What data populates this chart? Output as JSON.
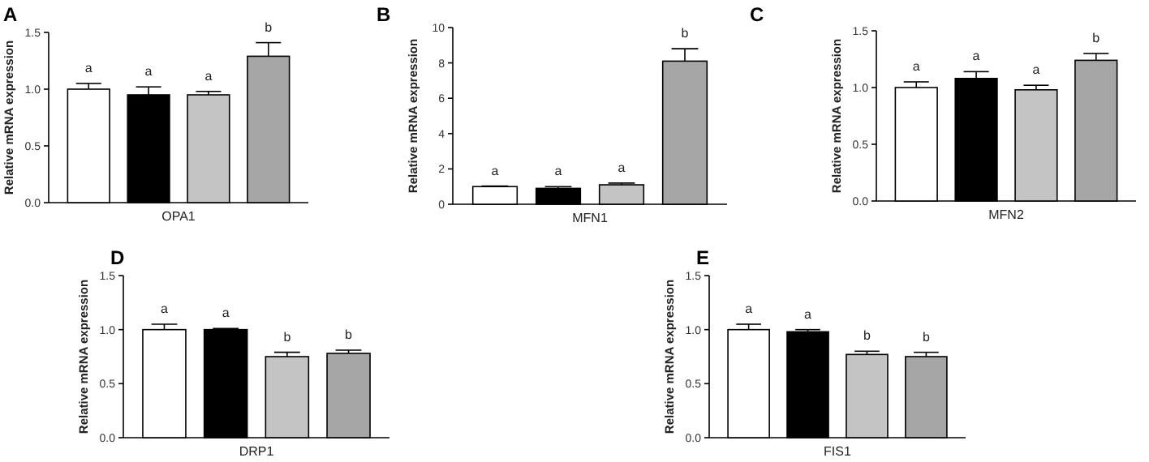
{
  "chart_data": [
    {
      "type": "bar",
      "title": "A",
      "ylabel": "Relative mRNA expression",
      "categories": [
        "OPA1"
      ],
      "ylim": [
        0,
        1.5
      ],
      "yticks": [
        {
          "value": 0,
          "label": "0.0"
        },
        {
          "value": 0.5,
          "label": "0.5"
        },
        {
          "value": 1,
          "label": "1.0"
        },
        {
          "value": 1.5,
          "label": "1.5"
        }
      ],
      "series": [
        {
          "color": "#ffffff",
          "values": [
            1.0
          ],
          "errors": [
            0.05
          ],
          "value_labels": [
            "a"
          ]
        },
        {
          "color": "#000000",
          "values": [
            0.95
          ],
          "errors": [
            0.07
          ],
          "value_labels": [
            "a"
          ]
        },
        {
          "color": "#c4c4c4",
          "values": [
            0.95
          ],
          "errors": [
            0.03
          ],
          "value_labels": [
            "a"
          ]
        },
        {
          "color": "#a6a6a6",
          "values": [
            1.29
          ],
          "errors": [
            0.12
          ],
          "value_labels": [
            "b"
          ]
        }
      ]
    },
    {
      "type": "bar",
      "title": "B",
      "ylabel": "Relative mRNA expression",
      "categories": [
        "MFN1"
      ],
      "ylim": [
        0,
        10
      ],
      "yticks": [
        0,
        2,
        4,
        6,
        8,
        10
      ],
      "series": [
        {
          "color": "#ffffff",
          "values": [
            1.0
          ],
          "errors": [
            0.03
          ],
          "value_labels": [
            "a"
          ]
        },
        {
          "color": "#000000",
          "values": [
            0.9
          ],
          "errors": [
            0.1
          ],
          "value_labels": [
            "a"
          ]
        },
        {
          "color": "#c4c4c4",
          "values": [
            1.1
          ],
          "errors": [
            0.1
          ],
          "value_labels": [
            "a"
          ]
        },
        {
          "color": "#a6a6a6",
          "values": [
            8.1
          ],
          "errors": [
            0.7
          ],
          "value_labels": [
            "b"
          ]
        }
      ]
    },
    {
      "type": "bar",
      "title": "C",
      "ylabel": "Relative mRNA expression",
      "categories": [
        "MFN2"
      ],
      "ylim": [
        0,
        1.5
      ],
      "yticks": [
        {
          "value": 0,
          "label": "0.0"
        },
        {
          "value": 0.5,
          "label": "0.5"
        },
        {
          "value": 1,
          "label": "1.0"
        },
        {
          "value": 1.5,
          "label": "1.5"
        }
      ],
      "series": [
        {
          "color": "#ffffff",
          "values": [
            1.0
          ],
          "errors": [
            0.05
          ],
          "value_labels": [
            "a"
          ]
        },
        {
          "color": "#000000",
          "values": [
            1.08
          ],
          "errors": [
            0.06
          ],
          "value_labels": [
            "a"
          ]
        },
        {
          "color": "#c4c4c4",
          "values": [
            0.98
          ],
          "errors": [
            0.04
          ],
          "value_labels": [
            "a"
          ]
        },
        {
          "color": "#a6a6a6",
          "values": [
            1.24
          ],
          "errors": [
            0.06
          ],
          "value_labels": [
            "b"
          ]
        }
      ]
    },
    {
      "type": "bar",
      "title": "D",
      "ylabel": "Relative mRNA expression",
      "categories": [
        "DRP1"
      ],
      "ylim": [
        0,
        1.5
      ],
      "yticks": [
        {
          "value": 0,
          "label": "0.0"
        },
        {
          "value": 0.5,
          "label": "0.5"
        },
        {
          "value": 1,
          "label": "1.0"
        },
        {
          "value": 1.5,
          "label": "1.5"
        }
      ],
      "series": [
        {
          "color": "#ffffff",
          "values": [
            1.0
          ],
          "errors": [
            0.05
          ],
          "value_labels": [
            "a"
          ]
        },
        {
          "color": "#000000",
          "values": [
            1.0
          ],
          "errors": [
            0.01
          ],
          "value_labels": [
            "a"
          ]
        },
        {
          "color": "#c4c4c4",
          "values": [
            0.75
          ],
          "errors": [
            0.04
          ],
          "value_labels": [
            "b"
          ]
        },
        {
          "color": "#a6a6a6",
          "values": [
            0.78
          ],
          "errors": [
            0.03
          ],
          "value_labels": [
            "b"
          ]
        }
      ]
    },
    {
      "type": "bar",
      "title": "E",
      "ylabel": "Relative mRNA expression",
      "categories": [
        "FIS1"
      ],
      "ylim": [
        0,
        1.5
      ],
      "yticks": [
        {
          "value": 0,
          "label": "0.0"
        },
        {
          "value": 0.5,
          "label": "0.5"
        },
        {
          "value": 1,
          "label": "1.0"
        },
        {
          "value": 1.5,
          "label": "1.5"
        }
      ],
      "series": [
        {
          "color": "#ffffff",
          "values": [
            1.0
          ],
          "errors": [
            0.05
          ],
          "value_labels": [
            "a"
          ]
        },
        {
          "color": "#000000",
          "values": [
            0.98
          ],
          "errors": [
            0.02
          ],
          "value_labels": [
            "a"
          ]
        },
        {
          "color": "#c4c4c4",
          "values": [
            0.77
          ],
          "errors": [
            0.03
          ],
          "value_labels": [
            "b"
          ]
        },
        {
          "color": "#a6a6a6",
          "values": [
            0.75
          ],
          "errors": [
            0.04
          ],
          "value_labels": [
            "b"
          ]
        }
      ]
    }
  ]
}
